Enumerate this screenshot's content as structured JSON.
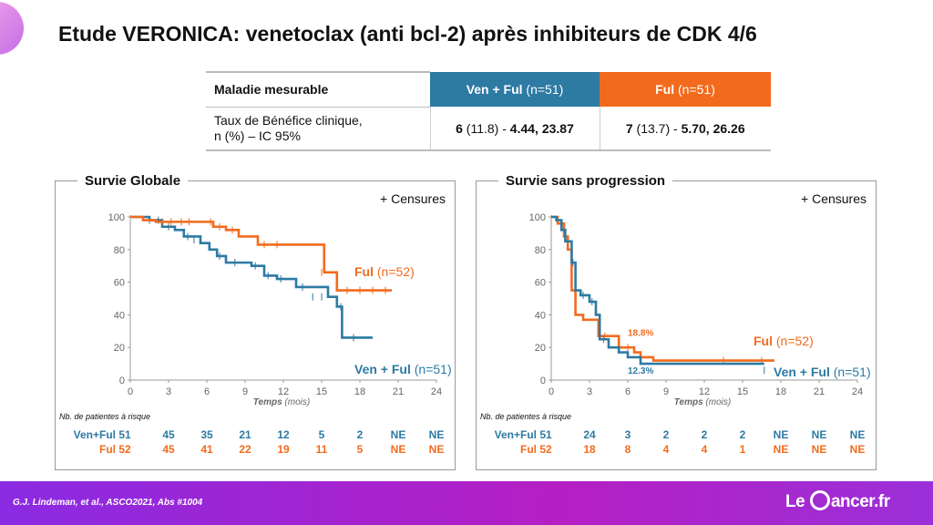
{
  "title": "Etude VERONICA:  venetoclax (anti bcl-2) après inhibiteurs de CDK 4/6",
  "table": {
    "header_label": "Maladie mesurable",
    "ven_arm": "Ven + Ful",
    "ven_n": " (n=51)",
    "ful_arm": "Ful",
    "ful_n": " (n=51)",
    "row_label_1": "Taux de Bénéfice clinique,",
    "row_label_2": "n (%) – IC 95%",
    "ven_n_value": "6",
    "ven_pct": " (11.8) - ",
    "ven_ci": "4.44, 23.87",
    "ful_n_value": "7",
    "ful_pct": " (13.7) - ",
    "ful_ci": "5.70, 26.26"
  },
  "censures_label": "+ Censures",
  "risk_title": "Nb. de patientes à risque",
  "risk_ven_label": "Ven+Ful",
  "risk_ful_label": "Ful",
  "xlabel_main": "Temps",
  "xlabel_unit": " (mois)",
  "colors": {
    "ven": "#2d7aa3",
    "ful": "#f26b1d"
  },
  "chart_data": [
    {
      "type": "line",
      "title": "Survie Globale",
      "xlabel": "Temps (mois)",
      "xlim": [
        0,
        24
      ],
      "ylim": [
        0,
        100
      ],
      "xticks": [
        0,
        3,
        6,
        9,
        12,
        15,
        18,
        21,
        24
      ],
      "yticks": [
        0,
        20,
        40,
        60,
        80,
        100
      ],
      "series": [
        {
          "name": "Ven + Ful (n=51)",
          "label_main": "Ven + Ful",
          "label_n": " (n=51)",
          "color": "#2d7aa3",
          "x": [
            0,
            1.5,
            2.5,
            3.5,
            4.2,
            5.5,
            6.2,
            6.8,
            7.5,
            9.5,
            10.5,
            11.5,
            13,
            15.5,
            16.2,
            16.6,
            19
          ],
          "y": [
            100,
            98,
            94,
            92,
            88,
            84,
            80,
            76,
            72,
            70,
            64,
            62,
            57,
            51,
            45,
            26,
            26
          ],
          "censors": [
            [
              1.5,
              98
            ],
            [
              2.2,
              98
            ],
            [
              3,
              94
            ],
            [
              4.5,
              88
            ],
            [
              5,
              86
            ],
            [
              7,
              76
            ],
            [
              8.2,
              72
            ],
            [
              9.8,
              70
            ],
            [
              10.8,
              64
            ],
            [
              11.8,
              62
            ],
            [
              13.5,
              57
            ],
            [
              14.3,
              51
            ],
            [
              15,
              51
            ],
            [
              16.5,
              45
            ],
            [
              17.5,
              26
            ]
          ]
        },
        {
          "name": "Ful (n=52)",
          "label_main": "Ful",
          "label_n": " (n=52)",
          "color": "#f26b1d",
          "x": [
            0,
            1,
            2,
            6,
            6.5,
            7.5,
            8.5,
            10,
            14.5,
            15.2,
            16.2,
            20.5
          ],
          "y": [
            100,
            98,
            97,
            97,
            94,
            92,
            88,
            83,
            83,
            66,
            55,
            55
          ],
          "censors": [
            [
              2.5,
              97
            ],
            [
              3.2,
              97
            ],
            [
              4,
              97
            ],
            [
              4.6,
              97
            ],
            [
              6.3,
              97
            ],
            [
              7,
              94
            ],
            [
              8,
              92
            ],
            [
              10.5,
              83
            ],
            [
              11.5,
              83
            ],
            [
              15,
              66
            ],
            [
              17,
              55
            ],
            [
              18,
              55
            ],
            [
              19,
              55
            ],
            [
              20,
              55
            ]
          ]
        }
      ],
      "risk": {
        "ven": [
          "51",
          "45",
          "35",
          "21",
          "12",
          "5",
          "2",
          "NE",
          "NE"
        ],
        "ful": [
          "52",
          "45",
          "41",
          "22",
          "19",
          "11",
          "5",
          "NE",
          "NE"
        ]
      }
    },
    {
      "type": "line",
      "title": "Survie sans progression",
      "xlabel": "Temps (mois)",
      "xlim": [
        0,
        24
      ],
      "ylim": [
        0,
        100
      ],
      "xticks": [
        0,
        3,
        6,
        9,
        12,
        15,
        18,
        21,
        24
      ],
      "yticks": [
        0,
        20,
        40,
        60,
        80,
        100
      ],
      "series": [
        {
          "name": "Ful (n=52)",
          "label_main": "Ful",
          "label_n": " (n=52)",
          "color": "#f26b1d",
          "x": [
            0,
            0.5,
            1,
            1.3,
            1.6,
            1.9,
            2.5,
            3.3,
            3.7,
            5.3,
            6.5,
            7,
            8,
            17.5
          ],
          "y": [
            100,
            96,
            88,
            80,
            55,
            40,
            37,
            37,
            27,
            20,
            17,
            14,
            12,
            12
          ],
          "censors": [
            [
              1.6,
              60
            ],
            [
              4.2,
              27
            ],
            [
              6,
              20
            ],
            [
              13.5,
              12
            ],
            [
              16.5,
              12
            ]
          ]
        },
        {
          "name": "Ven + Ful (n=51)",
          "label_main": "Ven + Ful",
          "label_n": " (n=51)",
          "color": "#2d7aa3",
          "x": [
            0,
            0.4,
            0.8,
            1.1,
            1.6,
            1.9,
            2.3,
            3,
            3.5,
            3.8,
            4.5,
            5.3,
            6,
            7,
            16.7
          ],
          "y": [
            100,
            98,
            92,
            85,
            72,
            55,
            52,
            48,
            40,
            25,
            20,
            17,
            14,
            10,
            10
          ],
          "censors": [
            [
              1.7,
              72
            ],
            [
              2.5,
              52
            ],
            [
              3.2,
              48
            ],
            [
              4.1,
              25
            ],
            [
              16.7,
              6
            ]
          ]
        }
      ],
      "annotations": [
        {
          "text": "18.8%",
          "x": 6,
          "y": 27,
          "color": "#f26b1d"
        },
        {
          "text": "12.3%",
          "x": 6,
          "y": 4,
          "color": "#2d7aa3"
        }
      ],
      "risk": {
        "ven": [
          "51",
          "24",
          "3",
          "2",
          "2",
          "2",
          "NE",
          "NE",
          "NE"
        ],
        "ful": [
          "52",
          "18",
          "8",
          "4",
          "4",
          "1",
          "NE",
          "NE",
          "NE"
        ]
      }
    }
  ],
  "citation": "G.J. Lindeman, et al.,  ASCO2021, Abs #1004",
  "logo": {
    "part1": "Le ",
    "part2": "ancer.fr"
  }
}
